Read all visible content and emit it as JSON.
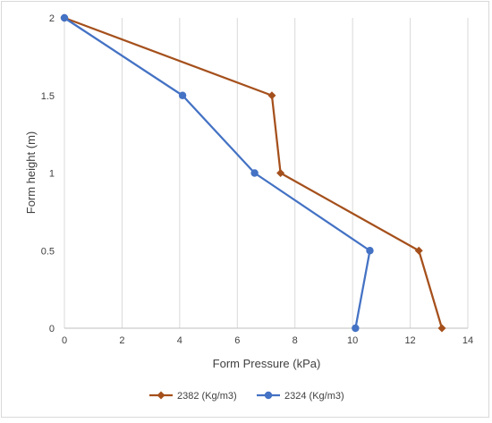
{
  "chart_data": {
    "type": "line",
    "title": "",
    "xlabel": "Form Pressure (kPa)",
    "ylabel": "Form height (m)",
    "xlim": [
      0,
      14
    ],
    "ylim": [
      0,
      2
    ],
    "x_ticks": [
      "0",
      "2",
      "4",
      "6",
      "8",
      "10",
      "12",
      "14"
    ],
    "y_ticks": [
      "0",
      "0.5",
      "1",
      "1.5",
      "2"
    ],
    "grid": "vertical",
    "legend": "bottom",
    "series": [
      {
        "name": "2382 (Kg/m3)",
        "color": "#a5501c",
        "marker": "diamond",
        "points": [
          [
            0,
            2
          ],
          [
            7.2,
            1.5
          ],
          [
            7.5,
            1
          ],
          [
            12.3,
            0.5
          ],
          [
            13.1,
            0
          ]
        ]
      },
      {
        "name": "2324 (Kg/m3)",
        "color": "#4472c4",
        "marker": "circle",
        "points": [
          [
            0,
            2
          ],
          [
            4.1,
            1.5
          ],
          [
            6.6,
            1
          ],
          [
            10.6,
            0.5
          ],
          [
            10.1,
            0
          ]
        ]
      }
    ]
  }
}
